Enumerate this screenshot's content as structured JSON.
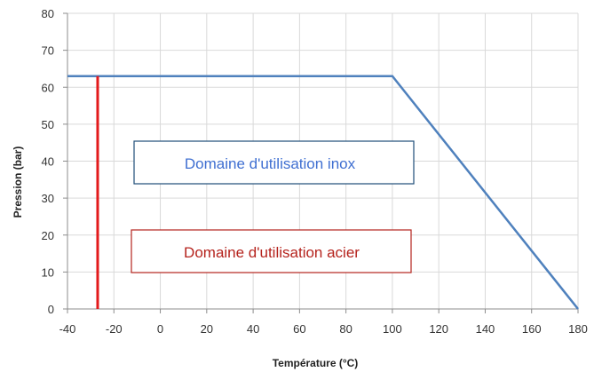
{
  "chart_data": {
    "type": "line",
    "xlabel": "Température (°C)",
    "ylabel": "Pression (bar)",
    "xlim": [
      -40,
      180
    ],
    "ylim": [
      0,
      80
    ],
    "x_ticks": [
      -40,
      -20,
      0,
      20,
      40,
      60,
      80,
      100,
      120,
      140,
      160,
      180
    ],
    "y_ticks": [
      0,
      10,
      20,
      30,
      40,
      50,
      60,
      70,
      80
    ],
    "grid": true,
    "series": [
      {
        "color": "#4f81bd",
        "points": [
          {
            "x": -40,
            "y": 63
          },
          {
            "x": 100,
            "y": 63
          },
          {
            "x": 180,
            "y": 0
          }
        ]
      },
      {
        "color": "#e31a1c",
        "points": [
          {
            "x": -27,
            "y": 63
          },
          {
            "x": -27,
            "y": 0
          }
        ]
      }
    ],
    "annotations": [
      {
        "text": "Domaine d'utilisation inox",
        "color": "#3f6fd1",
        "border": "#1f4e79"
      },
      {
        "text": "Domaine d'utilisation acier",
        "color": "#b5231d",
        "border": "#b5231d"
      }
    ]
  }
}
